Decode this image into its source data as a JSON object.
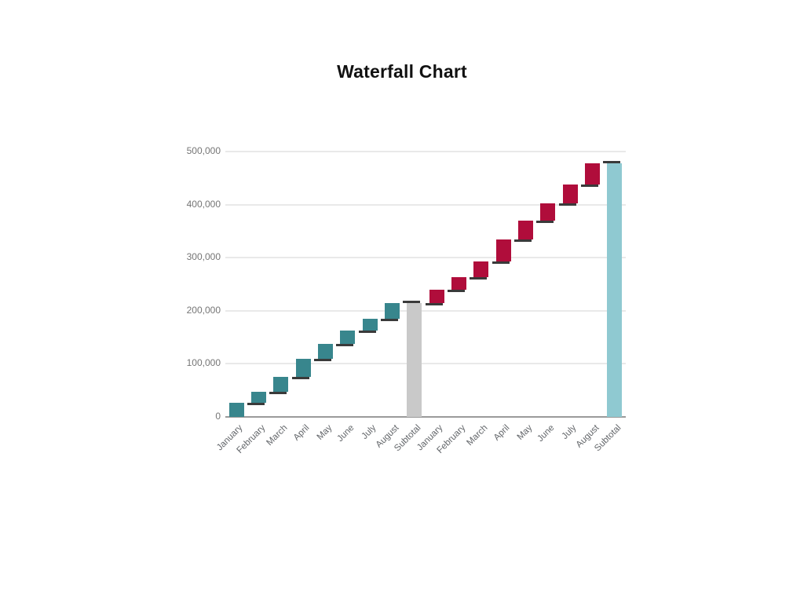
{
  "header": {
    "title": "Waterfall Chart"
  },
  "colors": {
    "increase_first_half": "#38868d",
    "increase_second_half": "#b00d3b",
    "subtotal_mid": "#c9c9c9",
    "subtotal_end": "#8fc9d1",
    "connector": "#3a3a3a",
    "axis_line": "#9a9a9a",
    "gridline": "#e9e9e9",
    "y_tick_label": "#757575",
    "x_tick_label": "#63666a",
    "title_text": "#111111"
  },
  "chart_data": {
    "type": "bar",
    "subtype": "waterfall",
    "title": "Waterfall Chart",
    "xlabel": "",
    "ylabel": "",
    "ylim": [
      0,
      500000
    ],
    "grid": true,
    "legend": false,
    "y_ticks": [
      {
        "label": "0",
        "value": 0
      },
      {
        "label": "100,000",
        "value": 100000
      },
      {
        "label": "200,000",
        "value": 200000
      },
      {
        "label": "300,000",
        "value": 300000
      },
      {
        "label": "400,000",
        "value": 400000
      },
      {
        "label": "500,000",
        "value": 500000
      }
    ],
    "bars": [
      {
        "label": "January",
        "value": 26000,
        "kind": "increase",
        "color_key": "increase_first_half"
      },
      {
        "label": "February",
        "value": 21000,
        "kind": "increase",
        "color_key": "increase_first_half"
      },
      {
        "label": "March",
        "value": 28000,
        "kind": "increase",
        "color_key": "increase_first_half"
      },
      {
        "label": "April",
        "value": 34000,
        "kind": "increase",
        "color_key": "increase_first_half"
      },
      {
        "label": "May",
        "value": 28000,
        "kind": "increase",
        "color_key": "increase_first_half"
      },
      {
        "label": "June",
        "value": 25000,
        "kind": "increase",
        "color_key": "increase_first_half"
      },
      {
        "label": "July",
        "value": 23000,
        "kind": "increase",
        "color_key": "increase_first_half"
      },
      {
        "label": "August",
        "value": 29000,
        "kind": "increase",
        "color_key": "increase_first_half"
      },
      {
        "label": "Subtotal",
        "value": 214000,
        "kind": "subtotal",
        "color_key": "subtotal_mid"
      },
      {
        "label": "January",
        "value": 25000,
        "kind": "increase",
        "color_key": "increase_second_half"
      },
      {
        "label": "February",
        "value": 25000,
        "kind": "increase",
        "color_key": "increase_second_half"
      },
      {
        "label": "March",
        "value": 29000,
        "kind": "increase",
        "color_key": "increase_second_half"
      },
      {
        "label": "April",
        "value": 42000,
        "kind": "increase",
        "color_key": "increase_second_half"
      },
      {
        "label": "May",
        "value": 35500,
        "kind": "increase",
        "color_key": "increase_second_half"
      },
      {
        "label": "June",
        "value": 32500,
        "kind": "increase",
        "color_key": "increase_second_half"
      },
      {
        "label": "July",
        "value": 34500,
        "kind": "increase",
        "color_key": "increase_second_half"
      },
      {
        "label": "August",
        "value": 40500,
        "kind": "increase",
        "color_key": "increase_second_half"
      },
      {
        "label": "Subtotal",
        "value": 478000,
        "kind": "subtotal",
        "color_key": "subtotal_end"
      }
    ]
  }
}
